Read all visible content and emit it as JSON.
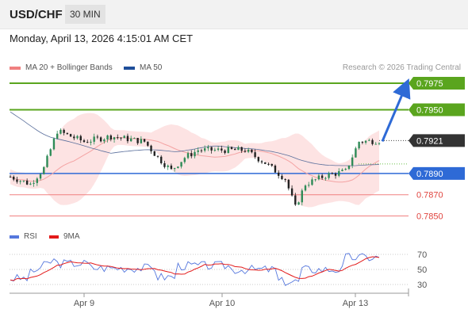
{
  "header": {
    "pair": "USD/CHF",
    "timeframe": "30 MIN"
  },
  "datetime": "Monday, April 13, 2026 4:15:01 AM CET",
  "legend": {
    "ma20": "MA 20 + Bollinger Bands",
    "ma50": "MA 50",
    "research": "Research © 2026 Trading Central",
    "rsi": "RSI",
    "ma9": "9MA"
  },
  "colors": {
    "green": "#5aa51e",
    "blue": "#2e6ad6",
    "red": "#f08080",
    "dark": "#333333",
    "band": "#fcdada",
    "bull": "#2e8b57",
    "bear": "#222222",
    "rsi": "#5577dd",
    "ma9": "#e31a1a"
  },
  "chart_data": [
    {
      "type": "candlestick",
      "x_labels": [
        "Apr 9",
        "Apr 10",
        "Apr 13"
      ],
      "ylim": [
        7840,
        7985
      ],
      "price_levels": [
        {
          "label": "0.7975",
          "value": 7975,
          "style": "green"
        },
        {
          "label": "0.7950",
          "value": 7950,
          "style": "green"
        },
        {
          "label": "0.7921",
          "value": 7921,
          "style": "current"
        },
        {
          "label": "0.7890",
          "value": 7890,
          "style": "blue"
        },
        {
          "label": "0.7870",
          "value": 7870,
          "style": "red"
        },
        {
          "label": "0.7850",
          "value": 7850,
          "style": "red"
        }
      ],
      "arrow": {
        "from_value": 7921,
        "to_value": 7975
      }
    },
    {
      "type": "line",
      "name": "RSI",
      "ylim": [
        20,
        80
      ],
      "ticks": [
        70,
        50,
        30
      ]
    }
  ]
}
